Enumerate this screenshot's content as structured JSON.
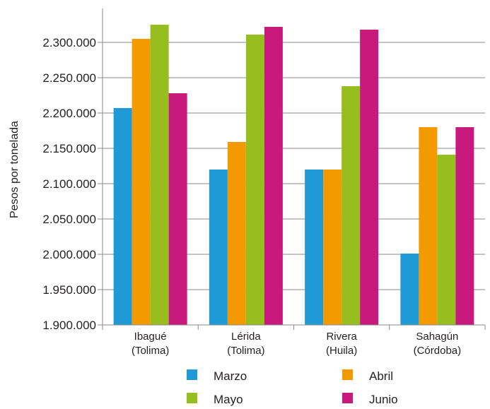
{
  "chart_data": {
    "type": "bar",
    "title": "",
    "xlabel": "",
    "ylabel": "Pesos por tonelada",
    "ylim": [
      1900000,
      2350000
    ],
    "yticks": [
      1900000,
      1950000,
      2000000,
      2050000,
      2100000,
      2150000,
      2200000,
      2250000,
      2300000
    ],
    "ytick_labels": [
      "1.900.000",
      "1.950.000",
      "2.000.000",
      "2.050.000",
      "2.100.000",
      "2.150.000",
      "2.200.000",
      "2.250.000",
      "2.300.000"
    ],
    "grid": "horizontal",
    "legend_position": "bottom",
    "categories": [
      [
        "Ibagué",
        "(Tolima)"
      ],
      [
        "Lérida",
        "(Tolima)"
      ],
      [
        "Rivera",
        "(Huila)"
      ],
      [
        "Sahagún",
        "(Córdoba)"
      ]
    ],
    "series": [
      {
        "name": "Marzo",
        "color": "#1f9ad6",
        "values": [
          2207000,
          2120000,
          2120000,
          2001000
        ]
      },
      {
        "name": "Abril",
        "color": "#f29a00",
        "values": [
          2305000,
          2159000,
          2120000,
          2180000
        ]
      },
      {
        "name": "Mayo",
        "color": "#95be1e",
        "values": [
          2325000,
          2311000,
          2238000,
          2141000
        ]
      },
      {
        "name": "Junio",
        "color": "#c71a7c",
        "values": [
          2228000,
          2322000,
          2318000,
          2180000
        ]
      }
    ]
  }
}
